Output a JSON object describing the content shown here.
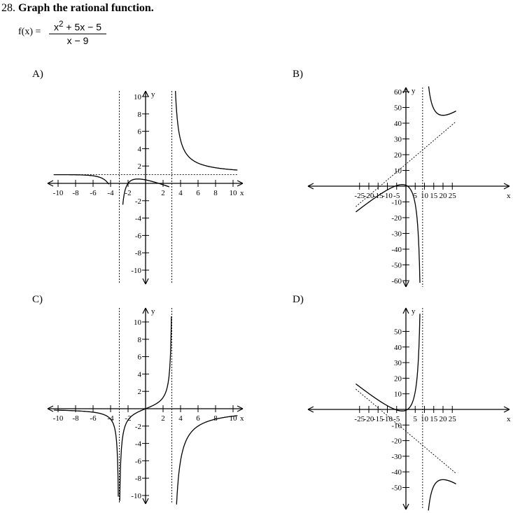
{
  "question": {
    "number": "28.",
    "prompt": "Graph the rational function.",
    "lhs": "f(x) =",
    "numerator_base": "x",
    "numerator_exp": "2",
    "numerator_rest": " + 5x − 5",
    "denominator": "x − 9"
  },
  "options": [
    {
      "label": "A)",
      "x_ticks": [
        "-10",
        "-8",
        "-6",
        "-4",
        "-2",
        "2",
        "4",
        "6",
        "8",
        "10"
      ],
      "y_ticks": [
        "10",
        "8",
        "6",
        "4",
        "2",
        "-2",
        "-4",
        "-6",
        "-8",
        "-10"
      ],
      "x_axis_label": "x",
      "y_axis_label": "y"
    },
    {
      "label": "B)",
      "x_ticks": [
        "-25",
        "-20",
        "-15",
        "-10",
        "-5",
        "5",
        "10",
        "15",
        "20",
        "25"
      ],
      "y_ticks": [
        "60",
        "50",
        "40",
        "30",
        "20",
        "10",
        "-10",
        "-20",
        "-30",
        "-40",
        "-50",
        "-60"
      ],
      "x_axis_label": "x",
      "y_axis_label": "y"
    },
    {
      "label": "C)",
      "x_ticks": [
        "-10",
        "-8",
        "-6",
        "-4",
        "-2",
        "2",
        "4",
        "6",
        "8",
        "10"
      ],
      "y_ticks": [
        "10",
        "8",
        "6",
        "4",
        "2",
        "-2",
        "-4",
        "-6",
        "-8",
        "-10"
      ],
      "x_axis_label": "x",
      "y_axis_label": "y"
    },
    {
      "label": "D)",
      "x_ticks": [
        "-25",
        "-20",
        "-15",
        "-10",
        "-5",
        "5",
        "10",
        "15",
        "20",
        "25"
      ],
      "y_ticks": [
        "50",
        "40",
        "30",
        "20",
        "10",
        "-10",
        "-20",
        "-30",
        "-40",
        "-50"
      ],
      "x_axis_label": "x",
      "y_axis_label": "y"
    }
  ],
  "chart_data": [
    {
      "type": "line",
      "label": "A)",
      "xlim": [
        -11,
        11
      ],
      "ylim": [
        -11,
        11
      ],
      "vertical_asymptotes": [
        -3,
        3
      ],
      "horizontal_asymptote": 1
    },
    {
      "type": "line",
      "label": "B)",
      "xlim": [
        -27,
        27
      ],
      "ylim": [
        -62,
        62
      ],
      "vertical_asymptotes": [
        9
      ],
      "slant_asymptote": {
        "slope": 1,
        "intercept": 14
      }
    },
    {
      "type": "line",
      "label": "C)",
      "xlim": [
        -11,
        11
      ],
      "ylim": [
        -11,
        11
      ],
      "vertical_asymptotes": [
        -3,
        3
      ],
      "horizontal_asymptote": 0
    },
    {
      "type": "line",
      "label": "D)",
      "xlim": [
        -27,
        27
      ],
      "ylim": [
        -58,
        58
      ],
      "vertical_asymptotes": [
        9
      ],
      "slant_asymptote": {
        "slope": -1,
        "intercept": -14
      }
    }
  ]
}
